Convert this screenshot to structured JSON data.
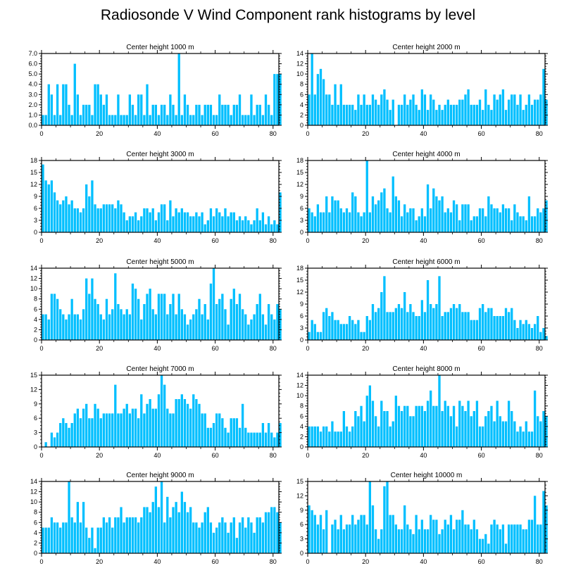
{
  "title": "Radiosonde V Wind Component rank histograms by level",
  "colors": {
    "bar": "#00bfff",
    "axis": "#000000",
    "background": "#ffffff"
  },
  "chart_data": [
    {
      "type": "bar",
      "title": "Center height 1000 m",
      "xlim": [
        0,
        82
      ],
      "ylim": [
        0,
        7
      ],
      "yticks": [
        "0.0",
        "1.0",
        "2.0",
        "3.0",
        "4.0",
        "5.0",
        "6.0",
        "7.0"
      ],
      "xticks": [
        "0",
        "20",
        "40",
        "60",
        "80"
      ],
      "values": [
        1,
        1,
        4,
        3,
        1,
        4,
        1,
        4,
        4,
        2,
        1,
        6,
        3,
        1,
        2,
        2,
        2,
        1,
        4,
        4,
        3,
        2,
        3,
        1,
        1,
        1,
        3,
        1,
        1,
        1,
        3,
        2,
        1,
        3,
        3,
        1,
        4,
        1,
        2,
        2,
        1,
        2,
        2,
        1,
        3,
        2,
        1,
        7,
        1,
        3,
        2,
        1,
        1,
        2,
        2,
        1,
        2,
        2,
        2,
        1,
        1,
        3,
        2,
        2,
        2,
        1,
        2,
        2,
        3,
        1,
        1,
        1,
        3,
        1,
        2,
        2,
        1,
        3,
        2,
        1,
        5,
        5,
        5
      ]
    },
    {
      "type": "bar",
      "title": "Center height 2000 m",
      "xlim": [
        0,
        82
      ],
      "ylim": [
        0,
        14
      ],
      "yticks": [
        "0",
        "2",
        "4",
        "6",
        "8",
        "10",
        "12",
        "14"
      ],
      "xticks": [
        "0",
        "20",
        "40",
        "60",
        "80"
      ],
      "values": [
        6,
        14,
        6,
        10,
        11,
        9,
        6,
        6,
        4,
        8,
        4,
        8,
        4,
        4,
        4,
        4,
        3,
        6,
        4,
        6,
        4,
        4,
        6,
        5,
        4,
        6,
        7,
        5,
        3,
        5,
        0,
        4,
        4,
        6,
        4,
        5,
        6,
        4,
        3,
        7,
        6,
        3,
        6,
        5,
        3,
        4,
        3,
        4,
        5,
        4,
        4,
        4,
        5,
        5,
        6,
        7,
        4,
        4,
        4,
        5,
        3,
        7,
        4,
        3,
        6,
        5,
        6,
        7,
        3,
        5,
        6,
        6,
        4,
        6,
        3,
        4,
        6,
        4,
        5,
        5,
        6,
        11,
        5
      ]
    },
    {
      "type": "bar",
      "title": "Center height 3000 m",
      "xlim": [
        0,
        82
      ],
      "ylim": [
        0,
        18
      ],
      "yticks": [
        "0",
        "3",
        "6",
        "9",
        "12",
        "15",
        "18"
      ],
      "xticks": [
        "0",
        "20",
        "40",
        "60",
        "80"
      ],
      "values": [
        17,
        13,
        12,
        13,
        10,
        8,
        7,
        8,
        9,
        7,
        8,
        6,
        6,
        5,
        6,
        12,
        9,
        13,
        7,
        6,
        6,
        7,
        7,
        7,
        7,
        6,
        8,
        7,
        5,
        3,
        4,
        4,
        5,
        3,
        4,
        6,
        6,
        5,
        6,
        3,
        5,
        7,
        7,
        3,
        8,
        4,
        6,
        5,
        6,
        5,
        5,
        4,
        4,
        5,
        4,
        5,
        2,
        3,
        6,
        4,
        6,
        5,
        4,
        6,
        4,
        5,
        5,
        3,
        4,
        3,
        4,
        3,
        2,
        3,
        6,
        3,
        5,
        2,
        4,
        2,
        3,
        2,
        10
      ]
    },
    {
      "type": "bar",
      "title": "Center height 4000 m",
      "xlim": [
        0,
        82
      ],
      "ylim": [
        0,
        18
      ],
      "yticks": [
        "0",
        "3",
        "6",
        "9",
        "12",
        "15",
        "18"
      ],
      "xticks": [
        "0",
        "20",
        "40",
        "60",
        "80"
      ],
      "values": [
        6,
        5,
        4,
        7,
        5,
        5,
        9,
        5,
        9,
        8,
        8,
        6,
        5,
        6,
        5,
        10,
        9,
        5,
        4,
        5,
        18,
        5,
        9,
        7,
        8,
        10,
        11,
        6,
        5,
        14,
        9,
        8,
        4,
        7,
        5,
        6,
        6,
        3,
        4,
        6,
        4,
        12,
        6,
        11,
        9,
        8,
        9,
        5,
        6,
        5,
        8,
        7,
        3,
        7,
        7,
        7,
        3,
        4,
        4,
        6,
        6,
        4,
        9,
        7,
        6,
        6,
        5,
        7,
        6,
        6,
        3,
        7,
        5,
        4,
        4,
        3,
        9,
        4,
        4,
        6,
        5,
        6,
        8
      ]
    },
    {
      "type": "bar",
      "title": "Center height 5000 m",
      "xlim": [
        0,
        82
      ],
      "ylim": [
        0,
        14
      ],
      "yticks": [
        "0",
        "2",
        "4",
        "6",
        "8",
        "10",
        "12",
        "14"
      ],
      "xticks": [
        "0",
        "20",
        "40",
        "60",
        "80"
      ],
      "values": [
        5,
        5,
        4,
        9,
        9,
        8,
        6,
        5,
        4,
        5,
        8,
        5,
        5,
        4,
        6,
        12,
        9,
        12,
        8,
        7,
        5,
        4,
        8,
        5,
        6,
        13,
        7,
        6,
        5,
        6,
        5,
        11,
        10,
        8,
        4,
        7,
        9,
        10,
        6,
        5,
        9,
        9,
        9,
        5,
        7,
        9,
        5,
        9,
        6,
        5,
        3,
        4,
        5,
        6,
        8,
        5,
        7,
        4,
        11,
        14,
        7,
        8,
        9,
        6,
        3,
        8,
        10,
        7,
        9,
        6,
        5,
        3,
        4,
        5,
        7,
        9,
        5,
        3,
        7,
        5,
        4,
        7,
        6
      ]
    },
    {
      "type": "bar",
      "title": "Center height 6000 m",
      "xlim": [
        0,
        82
      ],
      "ylim": [
        0,
        18
      ],
      "yticks": [
        "0",
        "3",
        "6",
        "9",
        "12",
        "15",
        "18"
      ],
      "xticks": [
        "0",
        "20",
        "40",
        "60",
        "80"
      ],
      "values": [
        2,
        5,
        4,
        2,
        2,
        7,
        8,
        6,
        7,
        5,
        5,
        4,
        4,
        4,
        6,
        5,
        4,
        5,
        2,
        2,
        6,
        5,
        9,
        7,
        8,
        12,
        16,
        7,
        7,
        7,
        8,
        9,
        8,
        12,
        7,
        9,
        7,
        6,
        6,
        10,
        7,
        15,
        9,
        8,
        9,
        16,
        6,
        7,
        7,
        8,
        9,
        8,
        9,
        7,
        7,
        7,
        5,
        5,
        5,
        8,
        9,
        7,
        8,
        8,
        6,
        6,
        6,
        6,
        8,
        7,
        8,
        5,
        3,
        5,
        4,
        5,
        4,
        3,
        4,
        6,
        2,
        3,
        1
      ]
    },
    {
      "type": "bar",
      "title": "Center height 7000 m",
      "xlim": [
        0,
        82
      ],
      "ylim": [
        0,
        15
      ],
      "yticks": [
        "0",
        "3",
        "6",
        "9",
        "12",
        "15"
      ],
      "xticks": [
        "0",
        "20",
        "40",
        "60",
        "80"
      ],
      "values": [
        0,
        1,
        0,
        3,
        2,
        3,
        5,
        6,
        5,
        4,
        5,
        7,
        8,
        6,
        8,
        9,
        6,
        6,
        9,
        8,
        6,
        7,
        7,
        7,
        7,
        13,
        7,
        7,
        8,
        9,
        7,
        8,
        8,
        6,
        11,
        7,
        9,
        10,
        8,
        8,
        11,
        15,
        13,
        8,
        7,
        7,
        10,
        10,
        11,
        10,
        9,
        8,
        11,
        10,
        9,
        7,
        7,
        4,
        4,
        5,
        7,
        7,
        6,
        4,
        3,
        6,
        6,
        6,
        4,
        9,
        4,
        3,
        3,
        3,
        3,
        3,
        5,
        3,
        5,
        3,
        2,
        3,
        5
      ]
    },
    {
      "type": "bar",
      "title": "Center height 8000 m",
      "xlim": [
        0,
        82
      ],
      "ylim": [
        0,
        14
      ],
      "yticks": [
        "0",
        "2",
        "4",
        "6",
        "8",
        "10",
        "12",
        "14"
      ],
      "xticks": [
        "0",
        "20",
        "40",
        "60",
        "80"
      ],
      "values": [
        4,
        4,
        4,
        4,
        3,
        4,
        4,
        3,
        5,
        3,
        3,
        3,
        7,
        4,
        3,
        4,
        7,
        6,
        8,
        5,
        10,
        12,
        9,
        6,
        4,
        9,
        7,
        7,
        4,
        5,
        10,
        8,
        7,
        8,
        8,
        6,
        6,
        8,
        8,
        8,
        7,
        9,
        11,
        8,
        8,
        14,
        7,
        9,
        8,
        6,
        8,
        4,
        9,
        8,
        7,
        9,
        6,
        7,
        9,
        4,
        4,
        6,
        7,
        8,
        5,
        9,
        6,
        5,
        5,
        9,
        7,
        5,
        3,
        4,
        3,
        5,
        3,
        3,
        11,
        6,
        5,
        7,
        6
      ]
    },
    {
      "type": "bar",
      "title": "Center height 9000 m",
      "xlim": [
        0,
        82
      ],
      "ylim": [
        0,
        14
      ],
      "yticks": [
        "0",
        "2",
        "4",
        "6",
        "8",
        "10",
        "12",
        "14"
      ],
      "xticks": [
        "0",
        "20",
        "40",
        "60",
        "80"
      ],
      "values": [
        5,
        5,
        5,
        7,
        6,
        6,
        5,
        6,
        6,
        14,
        7,
        6,
        10,
        6,
        10,
        5,
        3,
        5,
        1,
        5,
        5,
        7,
        6,
        7,
        5,
        7,
        7,
        9,
        6,
        7,
        7,
        7,
        7,
        6,
        7,
        9,
        9,
        8,
        10,
        13,
        9,
        14,
        6,
        11,
        7,
        9,
        10,
        8,
        12,
        10,
        8,
        9,
        6,
        6,
        5,
        6,
        8,
        9,
        6,
        4,
        5,
        6,
        7,
        6,
        4,
        6,
        7,
        3,
        6,
        7,
        5,
        7,
        6,
        4,
        7,
        7,
        6,
        8,
        8,
        9,
        9,
        8,
        6
      ]
    },
    {
      "type": "bar",
      "title": "Center height 10000 m",
      "xlim": [
        0,
        82
      ],
      "ylim": [
        0,
        15
      ],
      "yticks": [
        "0",
        "3",
        "6",
        "9",
        "12",
        "15"
      ],
      "xticks": [
        "0",
        "20",
        "40",
        "60",
        "80"
      ],
      "values": [
        10,
        9,
        8,
        6,
        8,
        5,
        9,
        0,
        6,
        7,
        5,
        8,
        5,
        6,
        6,
        8,
        6,
        7,
        8,
        8,
        6,
        15,
        10,
        5,
        3,
        5,
        14,
        15,
        8,
        8,
        6,
        5,
        5,
        10,
        6,
        5,
        4,
        8,
        5,
        7,
        5,
        5,
        8,
        7,
        7,
        4,
        5,
        7,
        6,
        8,
        5,
        7,
        7,
        9,
        6,
        6,
        5,
        7,
        5,
        3,
        3,
        4,
        2,
        6,
        7,
        6,
        5,
        6,
        2,
        6,
        6,
        6,
        6,
        6,
        5,
        5,
        7,
        7,
        12,
        6,
        6,
        13,
        10
      ]
    }
  ]
}
